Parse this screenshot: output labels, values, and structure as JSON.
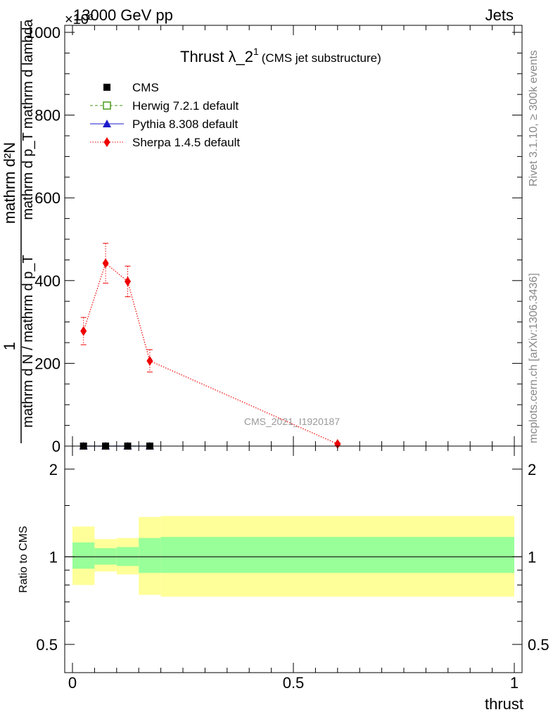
{
  "header": {
    "left": "13000 GeV pp",
    "right": "Jets",
    "exponent": "×10³"
  },
  "side_labels": {
    "rivet": "Rivet 3.1.10, ≥ 300k events",
    "mcplots": "mcplots.cern.ch [arXiv:1306.3436]"
  },
  "chart_data": [
    {
      "type": "line",
      "panel": "main",
      "title": "Thrust λ_2¹",
      "title_main": "Thrust λ_2",
      "title_sup": "1",
      "subtitle": "(CMS jet substructure)",
      "watermark": "CMS_2021_I1920187",
      "xlabel": "thrust",
      "ylabel": "1/(mathrm d N) mathrm d²N/(mathrm d p_T mathrm d lambda)",
      "ylabel_parts": {
        "num_top": "mathrm d²N",
        "num_bottom": "mathrm d p_T mathrm d lambda",
        "one": "1",
        "den": "mathrm d N / mathrm d p_T"
      },
      "xlim": [
        0,
        1
      ],
      "ylim": [
        0,
        1000
      ],
      "y_multiplier": 1000,
      "yticks": [
        0,
        200,
        400,
        600,
        800,
        1000
      ],
      "ytick_labels": [
        "0",
        "200",
        "400",
        "600",
        "800",
        "1000"
      ],
      "series": [
        {
          "name": "CMS",
          "style": "square-filled",
          "color": "#000000",
          "x": [
            0.025,
            0.075,
            0.125,
            0.175
          ],
          "y": [
            0,
            0,
            0,
            0
          ],
          "yerr": [
            0,
            0,
            0,
            0
          ]
        },
        {
          "name": "Herwig 7.2.1 default",
          "style": "square-open-dashed",
          "color": "#4a9a1a",
          "x": [
            0.025,
            0.075,
            0.125,
            0.175
          ],
          "y": [
            0,
            0,
            0,
            0
          ],
          "yerr": [
            0,
            0,
            0,
            0
          ]
        },
        {
          "name": "Pythia 8.308 default",
          "style": "triangle-solid",
          "color": "#1a1acc",
          "x": [
            0.025,
            0.075,
            0.125,
            0.175
          ],
          "y": [
            0,
            0,
            0,
            0
          ],
          "yerr": [
            0,
            0,
            0,
            0
          ]
        },
        {
          "name": "Sherpa 1.4.5 default",
          "style": "diamond-dotted",
          "color": "#ee0000",
          "x": [
            0.025,
            0.075,
            0.125,
            0.175,
            0.6
          ],
          "y": [
            278,
            442,
            398,
            206,
            5
          ],
          "yerr": [
            33,
            48,
            37,
            27,
            3
          ]
        }
      ]
    },
    {
      "type": "area",
      "panel": "ratio",
      "ylabel": "Ratio to CMS",
      "xlabel": "thrust",
      "xlim": [
        0,
        1
      ],
      "ylim": [
        0.4,
        2.4
      ],
      "yscale": "log",
      "yticks": [
        0.5,
        1,
        2
      ],
      "ytick_labels": [
        "0.5",
        "1",
        "2"
      ],
      "xticks": [
        0,
        0.5,
        1
      ],
      "xtick_labels": [
        "0",
        "0.5",
        "1"
      ],
      "bins": [
        {
          "lo": 0.0,
          "hi": 0.05,
          "green": [
            0.91,
            1.12
          ],
          "yellow": [
            0.8,
            1.27
          ]
        },
        {
          "lo": 0.05,
          "hi": 0.1,
          "green": [
            0.94,
            1.07
          ],
          "yellow": [
            0.89,
            1.15
          ]
        },
        {
          "lo": 0.1,
          "hi": 0.15,
          "green": [
            0.93,
            1.08
          ],
          "yellow": [
            0.87,
            1.16
          ]
        },
        {
          "lo": 0.15,
          "hi": 0.2,
          "green": [
            0.88,
            1.16
          ],
          "yellow": [
            0.74,
            1.37
          ]
        },
        {
          "lo": 0.2,
          "hi": 1.0,
          "green": [
            0.88,
            1.17
          ],
          "yellow": [
            0.73,
            1.38
          ]
        }
      ],
      "colors": {
        "green": "#99ff99",
        "yellow": "#ffff99"
      }
    }
  ]
}
